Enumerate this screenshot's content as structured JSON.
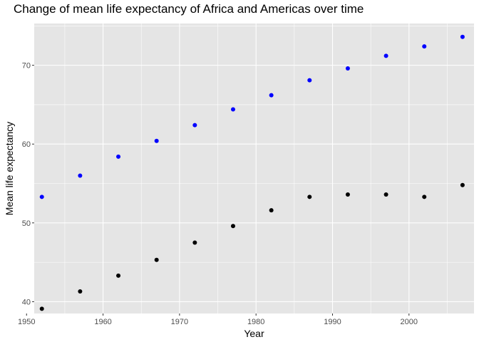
{
  "chart_data": {
    "type": "scatter",
    "title": "Change of mean life expectancy of Africa and Americas over time",
    "xlabel": "Year",
    "ylabel": "Mean life expectancy",
    "xlim": [
      1951.0,
      2008.5
    ],
    "ylim": [
      38.5,
      75.3
    ],
    "x_ticks": [
      1950,
      1960,
      1970,
      1980,
      1990,
      2000
    ],
    "y_ticks": [
      40,
      50,
      60,
      70
    ],
    "grid": true,
    "legend": "none",
    "colors": {
      "panel": "#e5e5e5",
      "grid": "#ffffff",
      "series_black": "#000000",
      "series_blue": "#0000ff"
    },
    "x": [
      1952,
      1957,
      1962,
      1967,
      1972,
      1977,
      1982,
      1987,
      1992,
      1997,
      2002,
      2007
    ],
    "series": [
      {
        "color": "#0000ff",
        "values": [
          53.3,
          56.0,
          58.4,
          60.4,
          62.4,
          64.4,
          66.2,
          68.1,
          69.6,
          71.2,
          72.4,
          73.6
        ]
      },
      {
        "color": "#000000",
        "values": [
          39.1,
          41.3,
          43.3,
          45.3,
          47.5,
          49.6,
          51.6,
          53.3,
          53.6,
          53.6,
          53.3,
          54.8
        ]
      }
    ]
  }
}
